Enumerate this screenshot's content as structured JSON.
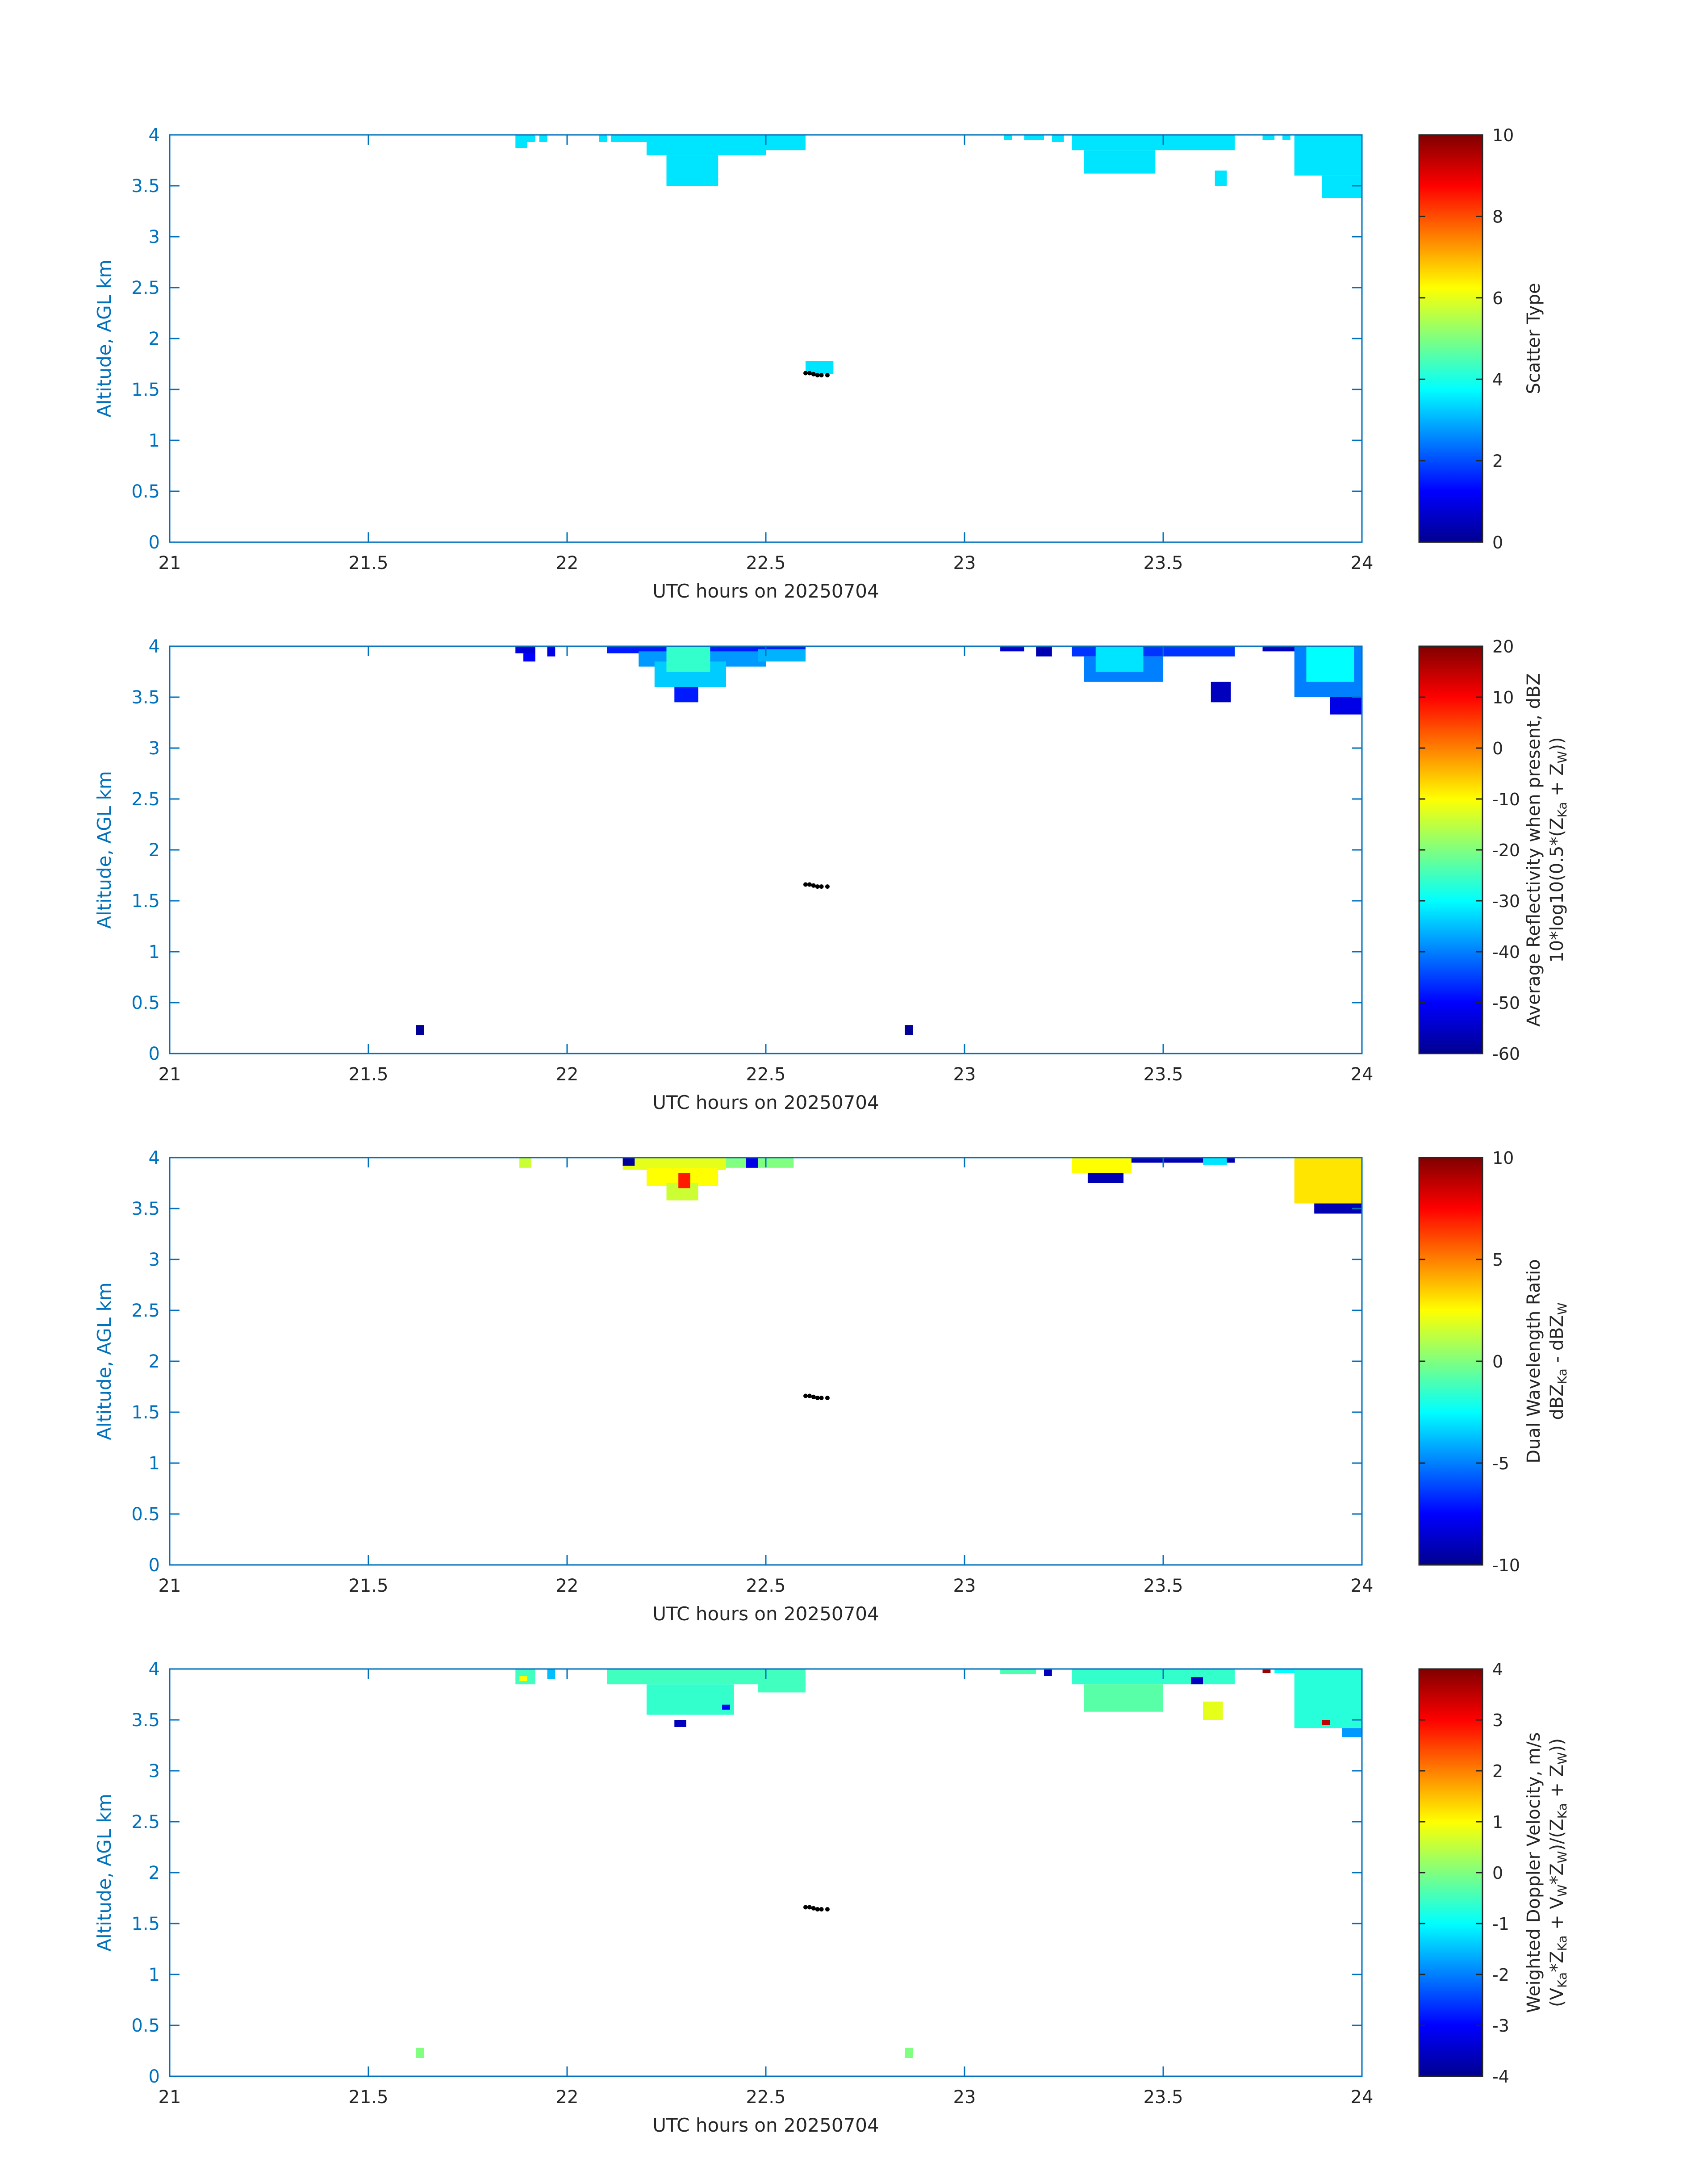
{
  "chart_data": [
    {
      "type": "heatmap",
      "xlabel": "UTC hours on 20250704",
      "ylabel": "Altitude, AGL km",
      "xlim": [
        21,
        24
      ],
      "ylim": [
        0,
        4
      ],
      "x_ticks": [
        "21",
        "21.5",
        "22",
        "22.5",
        "23",
        "23.5",
        "24"
      ],
      "y_ticks": [
        "0",
        "0.5",
        "1",
        "1.5",
        "2",
        "2.5",
        "3",
        "3.5",
        "4"
      ],
      "colorbar": {
        "label": "Scatter Type",
        "label_line2": "",
        "range": [
          0,
          10
        ],
        "ticks": [
          "0",
          "2",
          "4",
          "6",
          "8",
          "10"
        ]
      },
      "colormap": "jet",
      "cells": [
        {
          "x0": 21.87,
          "x1": 21.9,
          "y0": 3.87,
          "y1": 4.0,
          "value": 3.5
        },
        {
          "x0": 21.9,
          "x1": 21.92,
          "y0": 3.93,
          "y1": 4.0,
          "value": 3.5
        },
        {
          "x0": 21.93,
          "x1": 21.95,
          "y0": 3.93,
          "y1": 4.0,
          "value": 3.5
        },
        {
          "x0": 22.08,
          "x1": 22.1,
          "y0": 3.93,
          "y1": 4.0,
          "value": 3.5
        },
        {
          "x0": 22.11,
          "x1": 22.2,
          "y0": 3.93,
          "y1": 4.0,
          "value": 3.5
        },
        {
          "x0": 22.2,
          "x1": 22.5,
          "y0": 3.8,
          "y1": 4.0,
          "value": 3.5
        },
        {
          "x0": 22.25,
          "x1": 22.38,
          "y0": 3.5,
          "y1": 3.8,
          "value": 3.5
        },
        {
          "x0": 22.5,
          "x1": 22.6,
          "y0": 3.85,
          "y1": 4.0,
          "value": 3.5
        },
        {
          "x0": 22.6,
          "x1": 22.67,
          "y0": 1.65,
          "y1": 1.78,
          "value": 3.5
        },
        {
          "x0": 23.1,
          "x1": 23.12,
          "y0": 3.95,
          "y1": 4.0,
          "value": 3.5
        },
        {
          "x0": 23.15,
          "x1": 23.2,
          "y0": 3.95,
          "y1": 4.0,
          "value": 3.5
        },
        {
          "x0": 23.22,
          "x1": 23.25,
          "y0": 3.93,
          "y1": 4.0,
          "value": 3.5
        },
        {
          "x0": 23.27,
          "x1": 23.68,
          "y0": 3.85,
          "y1": 4.0,
          "value": 3.5
        },
        {
          "x0": 23.3,
          "x1": 23.48,
          "y0": 3.62,
          "y1": 3.85,
          "value": 3.5
        },
        {
          "x0": 23.63,
          "x1": 23.66,
          "y0": 3.5,
          "y1": 3.65,
          "value": 3.5
        },
        {
          "x0": 23.75,
          "x1": 23.78,
          "y0": 3.95,
          "y1": 4.0,
          "value": 3.5
        },
        {
          "x0": 23.8,
          "x1": 23.82,
          "y0": 3.95,
          "y1": 4.0,
          "value": 3.5
        },
        {
          "x0": 23.83,
          "x1": 24.0,
          "y0": 3.6,
          "y1": 4.0,
          "value": 3.5
        },
        {
          "x0": 23.9,
          "x1": 24.0,
          "y0": 3.38,
          "y1": 3.6,
          "value": 3.5
        }
      ],
      "black_points": {
        "x": [
          22.6,
          22.61,
          22.62,
          22.63,
          22.64,
          22.655
        ],
        "y": [
          1.66,
          1.66,
          1.65,
          1.64,
          1.64,
          1.64
        ]
      }
    },
    {
      "type": "heatmap",
      "xlabel": "UTC hours on 20250704",
      "ylabel": "Altitude, AGL km",
      "xlim": [
        21,
        24
      ],
      "ylim": [
        0,
        4
      ],
      "x_ticks": [
        "21",
        "21.5",
        "22",
        "22.5",
        "23",
        "23.5",
        "24"
      ],
      "y_ticks": [
        "0",
        "0.5",
        "1",
        "1.5",
        "2",
        "2.5",
        "3",
        "3.5",
        "4"
      ],
      "colorbar": {
        "label": "Average Reflectivity when present, dBZ",
        "label_line2": "10*log10(0.5*(Z",
        "label_line2_sub1": "Ka",
        "label_line2_mid": " + Z",
        "label_line2_sub2": "W",
        "label_line2_end": "))",
        "range": [
          -60,
          20
        ],
        "ticks": [
          "-60",
          "-50",
          "-40",
          "-30",
          "-20",
          "-10",
          "0",
          "10",
          "20"
        ]
      },
      "colormap": "jet",
      "cells": [
        {
          "x0": 21.87,
          "x1": 21.92,
          "y0": 3.93,
          "y1": 4.0,
          "value": -53
        },
        {
          "x0": 21.89,
          "x1": 21.92,
          "y0": 3.85,
          "y1": 3.93,
          "value": -50
        },
        {
          "x0": 21.95,
          "x1": 21.97,
          "y0": 3.9,
          "y1": 4.0,
          "value": -52
        },
        {
          "x0": 22.1,
          "x1": 22.6,
          "y0": 3.93,
          "y1": 4.0,
          "value": -48
        },
        {
          "x0": 22.18,
          "x1": 22.5,
          "y0": 3.8,
          "y1": 3.95,
          "value": -38
        },
        {
          "x0": 22.22,
          "x1": 22.4,
          "y0": 3.6,
          "y1": 3.85,
          "value": -34
        },
        {
          "x0": 22.25,
          "x1": 22.36,
          "y0": 3.75,
          "y1": 4.0,
          "value": -26
        },
        {
          "x0": 22.27,
          "x1": 22.33,
          "y0": 3.45,
          "y1": 3.6,
          "value": -48
        },
        {
          "x0": 22.48,
          "x1": 22.6,
          "y0": 3.85,
          "y1": 3.97,
          "value": -36
        },
        {
          "x0": 21.62,
          "x1": 21.64,
          "y0": 0.18,
          "y1": 0.28,
          "value": -58
        },
        {
          "x0": 22.85,
          "x1": 22.87,
          "y0": 0.18,
          "y1": 0.28,
          "value": -58
        },
        {
          "x0": 23.09,
          "x1": 23.15,
          "y0": 3.95,
          "y1": 4.0,
          "value": -54
        },
        {
          "x0": 23.18,
          "x1": 23.22,
          "y0": 3.9,
          "y1": 4.0,
          "value": -56
        },
        {
          "x0": 23.27,
          "x1": 23.68,
          "y0": 3.9,
          "y1": 4.0,
          "value": -46
        },
        {
          "x0": 23.3,
          "x1": 23.5,
          "y0": 3.65,
          "y1": 3.9,
          "value": -40
        },
        {
          "x0": 23.33,
          "x1": 23.45,
          "y0": 3.75,
          "y1": 4.0,
          "value": -32
        },
        {
          "x0": 23.62,
          "x1": 23.67,
          "y0": 3.45,
          "y1": 3.65,
          "value": -55
        },
        {
          "x0": 23.75,
          "x1": 23.85,
          "y0": 3.95,
          "y1": 4.0,
          "value": -55
        },
        {
          "x0": 23.83,
          "x1": 24.0,
          "y0": 3.5,
          "y1": 4.0,
          "value": -40
        },
        {
          "x0": 23.86,
          "x1": 23.98,
          "y0": 3.65,
          "y1": 4.0,
          "value": -30
        },
        {
          "x0": 23.92,
          "x1": 24.0,
          "y0": 3.33,
          "y1": 3.5,
          "value": -52
        }
      ],
      "black_points": {
        "x": [
          22.6,
          22.61,
          22.62,
          22.63,
          22.64,
          22.655
        ],
        "y": [
          1.66,
          1.66,
          1.65,
          1.64,
          1.64,
          1.64
        ]
      }
    },
    {
      "type": "heatmap",
      "xlabel": "UTC hours on 20250704",
      "ylabel": "Altitude, AGL km",
      "xlim": [
        21,
        24
      ],
      "ylim": [
        0,
        4
      ],
      "x_ticks": [
        "21",
        "21.5",
        "22",
        "22.5",
        "23",
        "23.5",
        "24"
      ],
      "y_ticks": [
        "0",
        "0.5",
        "1",
        "1.5",
        "2",
        "2.5",
        "3",
        "3.5",
        "4"
      ],
      "colorbar": {
        "label": "Dual Wavelength Ratio",
        "label_line2": "dBZ",
        "label_line2_sub1": "Ka",
        "label_line2_mid": " - dBZ",
        "label_line2_sub2": "W",
        "label_line2_end": "",
        "range": [
          -10,
          10
        ],
        "ticks": [
          "-10",
          "-5",
          "0",
          "5",
          "10"
        ]
      },
      "colormap": "jet",
      "cells": [
        {
          "x0": 21.88,
          "x1": 21.91,
          "y0": 3.9,
          "y1": 4.0,
          "value": 1.5
        },
        {
          "x0": 22.14,
          "x1": 22.4,
          "y0": 3.88,
          "y1": 4.0,
          "value": 2.0
        },
        {
          "x0": 22.2,
          "x1": 22.38,
          "y0": 3.72,
          "y1": 3.9,
          "value": 2.5
        },
        {
          "x0": 22.25,
          "x1": 22.33,
          "y0": 3.58,
          "y1": 3.75,
          "value": 1.5
        },
        {
          "x0": 22.28,
          "x1": 22.31,
          "y0": 3.7,
          "y1": 3.85,
          "value": 7.0
        },
        {
          "x0": 22.14,
          "x1": 22.17,
          "y0": 3.92,
          "y1": 4.0,
          "value": -9.5
        },
        {
          "x0": 22.4,
          "x1": 22.57,
          "y0": 3.9,
          "y1": 4.0,
          "value": 0.0
        },
        {
          "x0": 22.45,
          "x1": 22.48,
          "y0": 3.9,
          "y1": 4.0,
          "value": -8.0
        },
        {
          "x0": 23.27,
          "x1": 23.42,
          "y0": 3.85,
          "y1": 4.0,
          "value": 2.5
        },
        {
          "x0": 23.31,
          "x1": 23.4,
          "y0": 3.75,
          "y1": 3.85,
          "value": -9.0
        },
        {
          "x0": 23.42,
          "x1": 23.68,
          "y0": 3.95,
          "y1": 4.0,
          "value": -9.0
        },
        {
          "x0": 23.6,
          "x1": 23.66,
          "y0": 3.93,
          "y1": 4.0,
          "value": -3.0
        },
        {
          "x0": 23.83,
          "x1": 24.0,
          "y0": 3.55,
          "y1": 4.0,
          "value": 3.0
        },
        {
          "x0": 23.88,
          "x1": 24.0,
          "y0": 3.45,
          "y1": 3.55,
          "value": -9.0
        }
      ],
      "black_points": {
        "x": [
          22.6,
          22.61,
          22.62,
          22.63,
          22.64,
          22.655
        ],
        "y": [
          1.66,
          1.66,
          1.65,
          1.64,
          1.64,
          1.64
        ]
      }
    },
    {
      "type": "heatmap",
      "xlabel": "UTC hours on 20250704",
      "ylabel": "Altitude, AGL km",
      "xlim": [
        21,
        24
      ],
      "ylim": [
        0,
        4
      ],
      "x_ticks": [
        "21",
        "21.5",
        "22",
        "22.5",
        "23",
        "23.5",
        "24"
      ],
      "y_ticks": [
        "0",
        "0.5",
        "1",
        "1.5",
        "2",
        "2.5",
        "3",
        "3.5",
        "4"
      ],
      "colorbar": {
        "label": "Weighted Doppler Velocity, m/s",
        "label_line2": "(V",
        "label_line2_sub1": "Ka",
        "label_line2_mid": "*Z",
        "label_line2_sub2": "Ka",
        "label_line2_end": " + V",
        "label_line2_sub3": "W",
        "label_line2_mid2": "*Z",
        "label_line2_sub4": "W",
        "label_line2_mid3": ")/(Z",
        "label_line2_sub5": "Ka",
        "label_line2_mid4": " + Z",
        "label_line2_sub6": "W",
        "label_line2_end2": "))",
        "range": [
          -4,
          4
        ],
        "ticks": [
          "-4",
          "-3",
          "-2",
          "-1",
          "0",
          "1",
          "2",
          "3",
          "4"
        ]
      },
      "colormap": "jet",
      "cells": [
        {
          "x0": 21.87,
          "x1": 21.92,
          "y0": 3.85,
          "y1": 4.0,
          "value": -0.5
        },
        {
          "x0": 21.88,
          "x1": 21.9,
          "y0": 3.88,
          "y1": 3.93,
          "value": 1.0
        },
        {
          "x0": 21.95,
          "x1": 21.97,
          "y0": 3.9,
          "y1": 4.0,
          "value": -1.5
        },
        {
          "x0": 22.1,
          "x1": 22.6,
          "y0": 3.85,
          "y1": 4.0,
          "value": -0.5
        },
        {
          "x0": 22.2,
          "x1": 22.42,
          "y0": 3.55,
          "y1": 3.85,
          "value": -0.6
        },
        {
          "x0": 22.27,
          "x1": 22.3,
          "y0": 3.43,
          "y1": 3.5,
          "value": -3.5
        },
        {
          "x0": 22.39,
          "x1": 22.41,
          "y0": 3.6,
          "y1": 3.65,
          "value": -3.0
        },
        {
          "x0": 22.48,
          "x1": 22.6,
          "y0": 3.77,
          "y1": 3.9,
          "value": -0.5
        },
        {
          "x0": 21.62,
          "x1": 21.64,
          "y0": 0.18,
          "y1": 0.28,
          "value": 0.0
        },
        {
          "x0": 22.85,
          "x1": 22.87,
          "y0": 0.18,
          "y1": 0.28,
          "value": 0.0
        },
        {
          "x0": 23.09,
          "x1": 23.18,
          "y0": 3.95,
          "y1": 4.0,
          "value": -0.4
        },
        {
          "x0": 23.27,
          "x1": 23.68,
          "y0": 3.85,
          "y1": 4.0,
          "value": -0.6
        },
        {
          "x0": 23.3,
          "x1": 23.5,
          "y0": 3.58,
          "y1": 3.85,
          "value": -0.3
        },
        {
          "x0": 23.57,
          "x1": 23.6,
          "y0": 3.85,
          "y1": 3.92,
          "value": -3.5
        },
        {
          "x0": 23.6,
          "x1": 23.65,
          "y0": 3.5,
          "y1": 3.68,
          "value": 0.8
        },
        {
          "x0": 23.2,
          "x1": 23.22,
          "y0": 3.93,
          "y1": 4.0,
          "value": -3.5
        },
        {
          "x0": 23.75,
          "x1": 23.77,
          "y0": 3.96,
          "y1": 4.0,
          "value": 3.8
        },
        {
          "x0": 23.78,
          "x1": 23.84,
          "y0": 3.96,
          "y1": 4.0,
          "value": -1.0
        },
        {
          "x0": 23.83,
          "x1": 24.0,
          "y0": 3.42,
          "y1": 4.0,
          "value": -0.7
        },
        {
          "x0": 23.9,
          "x1": 23.92,
          "y0": 3.45,
          "y1": 3.5,
          "value": 3.5
        },
        {
          "x0": 23.95,
          "x1": 24.0,
          "y0": 3.33,
          "y1": 3.42,
          "value": -1.8
        }
      ],
      "black_points": {
        "x": [
          22.6,
          22.61,
          22.62,
          22.63,
          22.64,
          22.655
        ],
        "y": [
          1.66,
          1.66,
          1.65,
          1.64,
          1.64,
          1.64
        ]
      }
    }
  ]
}
